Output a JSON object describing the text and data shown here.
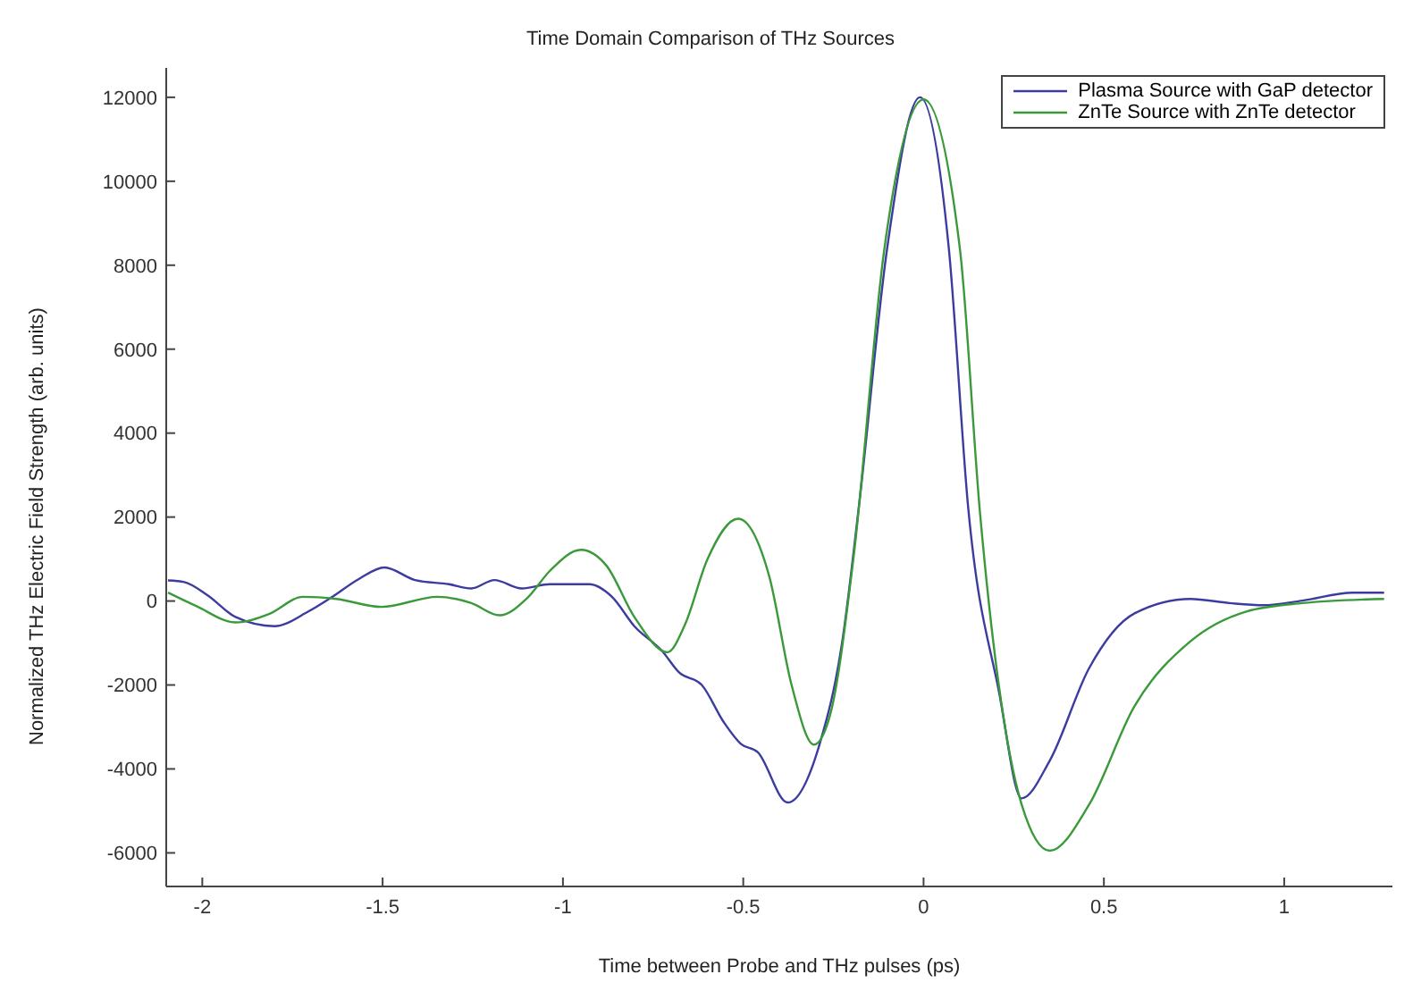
{
  "chart_data": {
    "type": "line",
    "title": "Time Domain Comparison of THz Sources",
    "xlabel": "Time between Probe and THz pulses (ps)",
    "ylabel": "Normalized THz Electric Field Strength (arb. units)",
    "xlim": [
      -2.1,
      1.3
    ],
    "xticks": [
      -2,
      -1.5,
      -1,
      -0.5,
      0,
      0.5,
      1
    ],
    "ylim": [
      -6800,
      12700
    ],
    "yticks": [
      -6000,
      -4000,
      -2000,
      0,
      2000,
      4000,
      6000,
      8000,
      10000,
      12000
    ],
    "grid": false,
    "legend": "top right",
    "marker": "none",
    "line_style": "solid",
    "series": [
      {
        "name": "Plasma Source with GaP detector",
        "color": "#3c3ca0",
        "x": [
          -2.095,
          -2.05,
          -1.986,
          -1.908,
          -1.8,
          -1.706,
          -1.643,
          -1.565,
          -1.495,
          -1.41,
          -1.316,
          -1.254,
          -1.19,
          -1.114,
          -1.036,
          -0.927,
          -0.864,
          -0.802,
          -0.724,
          -0.678,
          -0.615,
          -0.553,
          -0.507,
          -0.46,
          -0.377,
          -0.288,
          -0.226,
          -0.18,
          -0.101,
          -0.01,
          0.07,
          0.124,
          0.21,
          0.272,
          0.35,
          0.459,
          0.584,
          0.74,
          0.849,
          0.942,
          1.051,
          1.19,
          1.277
        ],
        "values": [
          490,
          450,
          140,
          -380,
          -600,
          -250,
          80,
          530,
          800,
          500,
          400,
          300,
          500,
          300,
          400,
          400,
          100,
          -600,
          -1200,
          -1700,
          -2000,
          -2900,
          -3400,
          -3600,
          -4800,
          -3400,
          -1000,
          2200,
          8400,
          12000,
          8400,
          2200,
          -2200,
          -4700,
          -3800,
          -1600,
          -300,
          50,
          -50,
          -100,
          10,
          200,
          200
        ]
      },
      {
        "name": "ZnTe Source with ZnTe detector",
        "color": "#3a9a3a",
        "x": [
          -2.095,
          -2.017,
          -1.908,
          -1.815,
          -1.721,
          -1.628,
          -1.503,
          -1.348,
          -1.254,
          -1.176,
          -1.098,
          -1.036,
          -0.95,
          -0.88,
          -0.802,
          -0.71,
          -0.662,
          -0.6,
          -0.514,
          -0.428,
          -0.366,
          -0.304,
          -0.257,
          -0.195,
          -0.109,
          0,
          0.101,
          0.156,
          0.272,
          0.35,
          0.459,
          0.584,
          0.74,
          0.895,
          1.051,
          1.277
        ],
        "values": [
          200,
          -120,
          -510,
          -310,
          100,
          50,
          -140,
          100,
          -50,
          -340,
          80,
          720,
          1220,
          850,
          -380,
          -1220,
          -570,
          980,
          1960,
          590,
          -2000,
          -3420,
          -2640,
          980,
          8370,
          11950,
          8370,
          2150,
          -4850,
          -5950,
          -4850,
          -2520,
          -960,
          -250,
          -50,
          50
        ]
      }
    ]
  }
}
